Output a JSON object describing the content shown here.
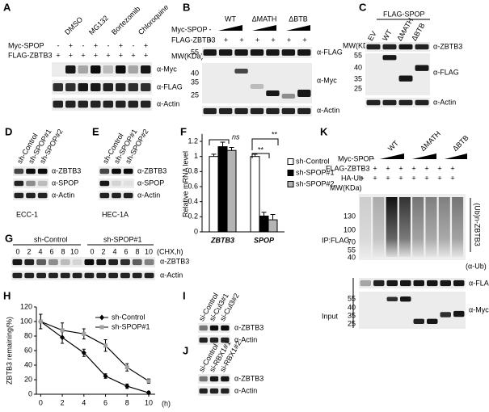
{
  "panels": {
    "A": {
      "label": "A",
      "treatments": [
        "DMSO",
        "MG132",
        "Bortezomib",
        "Chloroquine"
      ],
      "rows": [
        {
          "name": "Myc-SPOP",
          "signs": [
            "-",
            "+",
            "-",
            "+",
            "-",
            "+",
            "-",
            "+"
          ]
        },
        {
          "name": "FLAG-ZBTB3",
          "signs": [
            "+",
            "+",
            "+",
            "+",
            "+",
            "+",
            "+",
            "+"
          ]
        }
      ],
      "blots": [
        "α-Myc",
        "α-FLAG",
        "α-Actin"
      ]
    },
    "B": {
      "label": "B",
      "rows": [
        {
          "name": "Myc-SPOP",
          "signs": [
            "-"
          ]
        },
        {
          "name": "FLAG-ZBTB3",
          "signs": [
            "+",
            "+",
            "+",
            "+",
            "+",
            "+",
            "+"
          ]
        }
      ],
      "constructs": [
        "WT",
        "ΔMATH",
        "ΔBTB"
      ],
      "mw_title": "MW(KDa)",
      "mw": [
        55,
        40,
        35,
        25
      ],
      "blots": [
        "α-FLAG",
        "α-Myc",
        "α-Actin"
      ]
    },
    "C": {
      "label": "C",
      "group": "FLAG-SPOP",
      "lanes": [
        "EV",
        "WT",
        "ΔMATH",
        "ΔBTB"
      ],
      "mw_title": "MW(KDa)",
      "mw": [
        55,
        40,
        35,
        25
      ],
      "blots": [
        "α-ZBTB3",
        "α-FLAG",
        "α-Actin"
      ]
    },
    "D": {
      "label": "D",
      "lanes": [
        "sh-Control",
        "sh-SPOP#1",
        "sh-SPOP#2"
      ],
      "blots": [
        "α-ZBTB3",
        "α-SPOP",
        "α-Actin"
      ],
      "cell_line": "ECC-1"
    },
    "E": {
      "label": "E",
      "lanes": [
        "sh-Control",
        "sh-SPOP#1",
        "sh-SPOP#2"
      ],
      "blots": [
        "α-ZBTB3",
        "α-SPOP",
        "α-Actin"
      ],
      "cell_line": "HEC-1A"
    },
    "G": {
      "label": "G",
      "groups": [
        "sh-Control",
        "sh-SPOP#1"
      ],
      "times": [
        0,
        2,
        4,
        6,
        8,
        10,
        0,
        2,
        4,
        6,
        8,
        10
      ],
      "unit": "(CHX,h)",
      "blots": [
        "α-ZBTB3",
        "α-Actin"
      ]
    },
    "I": {
      "label": "I",
      "lanes": [
        "si-Control",
        "si-Cul3#1",
        "si-Cul3#2"
      ],
      "blots": [
        "α-ZBTB3",
        "α-Actin"
      ]
    },
    "J": {
      "label": "J",
      "lanes": [
        "si-Control",
        "si-RBX1#1",
        "si-RBX1#2"
      ],
      "blots": [
        "α-ZBTB3",
        "α-Actin"
      ]
    },
    "K": {
      "label": "K",
      "rows": [
        {
          "name": "Myc-SPOP",
          "signs": [
            "-",
            "-"
          ]
        },
        {
          "name": "FLAG-ZBTB3",
          "signs": [
            "-",
            "+",
            "+",
            "+",
            "+",
            "+",
            "+",
            "+"
          ]
        },
        {
          "name": "HA-Ub",
          "signs": [
            "+",
            "+",
            "+",
            "+",
            "+",
            "+",
            "+",
            "+"
          ]
        }
      ],
      "constructs": [
        "WT",
        "ΔMATH",
        "ΔBTB"
      ],
      "mw_title": "MW(KDa)",
      "mw_ip": [
        130,
        100,
        70,
        55,
        40
      ],
      "ip": "IP:FLAG",
      "ip_band": "(Ub)n-ZBTB3",
      "ip_antibody": "(α-Ub)",
      "input": "Input",
      "mw_input": [
        55,
        40,
        35,
        25
      ],
      "blots": [
        "α-FLAG",
        "α-Myc"
      ]
    }
  },
  "chart_data": [
    {
      "type": "bar",
      "panel": "F",
      "ylabel": "Relative mRNA level",
      "categories": [
        "ZBTB3",
        "SPOP"
      ],
      "series": [
        {
          "name": "sh-Control",
          "color": "#ffffff",
          "values": [
            1.0,
            1.0
          ],
          "errors": [
            0.03,
            0.03
          ]
        },
        {
          "name": "sh-SPOP#1",
          "color": "#000000",
          "values": [
            1.13,
            0.21
          ],
          "errors": [
            0.06,
            0.05
          ]
        },
        {
          "name": "sh-SPOP#2",
          "color": "#b4b4b4",
          "values": [
            1.08,
            0.16
          ],
          "errors": [
            0.04,
            0.07
          ]
        }
      ],
      "ylim": [
        0,
        1.3
      ],
      "yticks": [
        0,
        0.2,
        0.4,
        0.6,
        0.8,
        1,
        1.2
      ],
      "annotations": [
        "ns",
        "**",
        "**"
      ],
      "legend": "right"
    },
    {
      "type": "line",
      "panel": "H",
      "ylabel": "ZBTB3 remaining(%)",
      "xlabel": "(h)",
      "x": [
        0,
        2,
        4,
        6,
        8,
        10
      ],
      "series": [
        {
          "name": "sh-Control",
          "color": "#000000",
          "marker": "diamond",
          "values": [
            100,
            78,
            57,
            25,
            11,
            2
          ],
          "errors": [
            10,
            8,
            5,
            3,
            3,
            2
          ]
        },
        {
          "name": "sh-SPOP#1",
          "color": "#a0a0a0",
          "marker": "square",
          "values": [
            100,
            88,
            83,
            67,
            37,
            18
          ],
          "errors": [
            10,
            10,
            7,
            8,
            5,
            3
          ]
        }
      ],
      "xlim": [
        -0.4,
        10.6
      ],
      "ylim": [
        0,
        120
      ],
      "xticks": [
        0,
        2,
        4,
        6,
        8,
        10
      ],
      "yticks": [
        0,
        20,
        40,
        60,
        80,
        100,
        120
      ],
      "legend": "upper right"
    }
  ]
}
